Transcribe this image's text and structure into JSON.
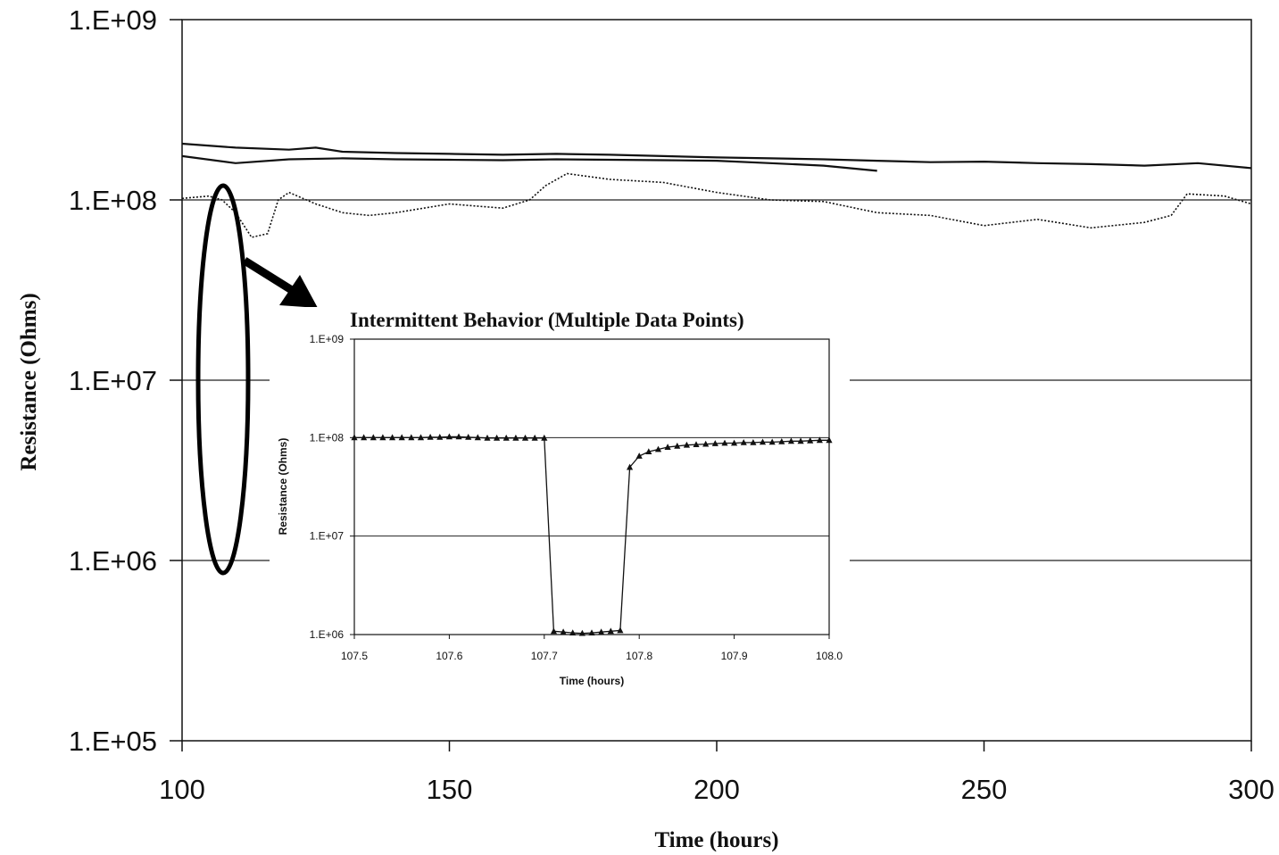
{
  "chart_data": [
    {
      "type": "line",
      "title": "",
      "xlabel": "Time (hours)",
      "ylabel": "Resistance (Ohms)",
      "xlim": [
        100,
        300
      ],
      "ylim": [
        100000,
        1000000000
      ],
      "y_scale": "log",
      "grid": "horizontal major gridlines at each decade",
      "x_ticks": [
        "100",
        "150",
        "200",
        "250",
        "300"
      ],
      "y_ticks": [
        "1.E+05",
        "1.E+06",
        "1.E+07",
        "1.E+08",
        "1.E+09"
      ],
      "series": [
        {
          "style": "solid",
          "x": [
            100,
            110,
            120,
            125,
            130,
            140,
            150,
            160,
            170,
            180,
            190,
            200,
            210,
            220,
            230,
            240,
            250,
            260,
            270,
            280,
            290,
            300
          ],
          "y": [
            205000000,
            195000000,
            190000000,
            195000000,
            185000000,
            182000000,
            180000000,
            178000000,
            180000000,
            178000000,
            175000000,
            172000000,
            170000000,
            168000000,
            165000000,
            162000000,
            163000000,
            160000000,
            158000000,
            155000000,
            160000000,
            150000000
          ]
        },
        {
          "style": "solid",
          "x": [
            100,
            110,
            120,
            130,
            140,
            150,
            160,
            170,
            180,
            190,
            200,
            210,
            220,
            230
          ],
          "y": [
            175000000,
            160000000,
            168000000,
            170000000,
            168000000,
            167000000,
            166000000,
            168000000,
            167000000,
            166000000,
            165000000,
            160000000,
            155000000,
            145000000
          ]
        },
        {
          "style": "dotted",
          "x": [
            100,
            105,
            107.5,
            110,
            113,
            116,
            118,
            120,
            125,
            130,
            135,
            140,
            150,
            160,
            165,
            168,
            172,
            180,
            190,
            200,
            210,
            220,
            230,
            240,
            250,
            260,
            270,
            280,
            285,
            288,
            295,
            300
          ],
          "y": [
            102000000,
            105000000,
            100000000,
            85000000,
            62000000,
            65000000,
            100000000,
            110000000,
            95000000,
            85000000,
            82000000,
            85000000,
            95000000,
            90000000,
            100000000,
            120000000,
            140000000,
            130000000,
            125000000,
            110000000,
            100000000,
            98000000,
            85000000,
            82000000,
            72000000,
            78000000,
            70000000,
            75000000,
            82000000,
            108000000,
            105000000,
            95000000
          ]
        }
      ],
      "annotations": [
        "ellipse around t≈108 h highlighting the intermittent drop to 1.E+06",
        "arrow pointing to inset"
      ]
    },
    {
      "type": "line",
      "title": "Intermittent Behavior (Multiple Data Points)",
      "xlabel": "Time (hours)",
      "ylabel": "Resistance (Ohms)",
      "xlim": [
        107.5,
        108.0
      ],
      "ylim": [
        1000000,
        1000000000
      ],
      "y_scale": "log",
      "grid": "horizontal major gridlines at each decade",
      "marker": "triangle",
      "x_ticks": [
        "107.5",
        "107.6",
        "107.7",
        "107.8",
        "107.9",
        "108.0"
      ],
      "y_ticks": [
        "1.E+06",
        "1.E+07",
        "1.E+08",
        "1.E+09"
      ],
      "series": [
        {
          "x": [
            107.5,
            107.51,
            107.52,
            107.53,
            107.54,
            107.55,
            107.56,
            107.57,
            107.58,
            107.59,
            107.6,
            107.61,
            107.62,
            107.63,
            107.64,
            107.65,
            107.66,
            107.67,
            107.68,
            107.69,
            107.7,
            107.71,
            107.72,
            107.73,
            107.74,
            107.75,
            107.76,
            107.77,
            107.78,
            107.79,
            107.8,
            107.81,
            107.82,
            107.83,
            107.84,
            107.85,
            107.86,
            107.87,
            107.88,
            107.89,
            107.9,
            107.91,
            107.92,
            107.93,
            107.94,
            107.95,
            107.96,
            107.97,
            107.98,
            107.99,
            108.0
          ],
          "y": [
            100000000,
            100000000,
            100000000,
            100000000,
            100000000,
            100000000,
            100000000,
            100000000,
            101000000,
            101000000,
            102000000,
            102000000,
            101000000,
            100000000,
            99000000,
            99000000,
            99000000,
            99000000,
            99000000,
            99000000,
            99000000,
            1080000,
            1060000,
            1040000,
            1030000,
            1040000,
            1060000,
            1080000,
            1100000,
            50000000,
            65000000,
            72000000,
            76000000,
            80000000,
            82000000,
            84000000,
            85000000,
            86000000,
            87000000,
            88000000,
            88000000,
            89000000,
            89000000,
            90000000,
            90000000,
            91000000,
            92000000,
            92000000,
            93000000,
            94000000,
            94000000
          ]
        }
      ]
    }
  ]
}
